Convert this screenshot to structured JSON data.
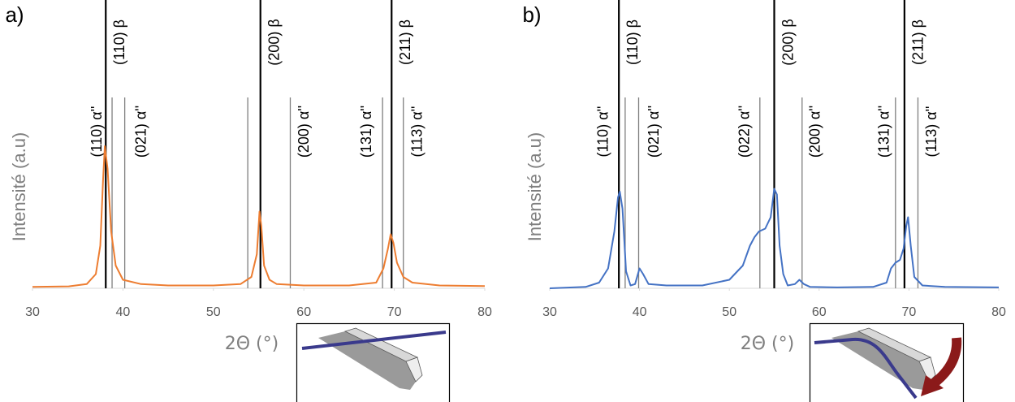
{
  "chart_data": [
    {
      "type": "line",
      "panel_label": "a)",
      "y_label": "Intensité (a.u)",
      "x_label": "2Θ (°)",
      "xlim": [
        30,
        80
      ],
      "xticks": [
        30,
        40,
        50,
        60,
        70,
        80
      ],
      "ylim": [
        0,
        100
      ],
      "x": [
        30,
        34,
        36,
        37,
        37.5,
        37.8,
        38.0,
        38.3,
        38.7,
        39.2,
        40,
        42,
        45,
        50,
        53,
        54.2,
        54.8,
        55.1,
        55.3,
        55.6,
        56.2,
        57,
        60,
        65,
        68,
        68.8,
        69.3,
        69.6,
        69.9,
        70.3,
        71,
        72,
        75,
        80
      ],
      "series": [
        {
          "color": "#ED7D31",
          "values": [
            0.5,
            0.7,
            1.5,
            5,
            15,
            38,
            50,
            42,
            20,
            8,
            3,
            1.5,
            1,
            1,
            1.5,
            4,
            12,
            27,
            22,
            8,
            3,
            1.5,
            1,
            1,
            2,
            7,
            14,
            19,
            16,
            9,
            4,
            2,
            1,
            0.8
          ]
        }
      ],
      "markers": [
        {
          "x": 38.1,
          "label": "(110) β",
          "style": "thick"
        },
        {
          "x": 38.8,
          "label": "(110) α''",
          "style": "thin"
        },
        {
          "x": 40.2,
          "label": "(021) α''",
          "style": "thin"
        },
        {
          "x": 53.8,
          "label": null,
          "style": "thin"
        },
        {
          "x": 55.2,
          "label": "(200) β",
          "style": "thick"
        },
        {
          "x": 58.5,
          "label": "(200) α''",
          "style": "thin"
        },
        {
          "x": 68.7,
          "label": "(131) α''",
          "style": "thin"
        },
        {
          "x": 69.7,
          "label": "(211) β",
          "style": "thick"
        },
        {
          "x": 71.0,
          "label": "(113) α''",
          "style": "thin"
        }
      ]
    },
    {
      "type": "line",
      "panel_label": "b)",
      "y_label": "Intensité (a.u)",
      "x_label": "2Θ (°)",
      "xlim": [
        30,
        80
      ],
      "xticks": [
        30,
        40,
        50,
        60,
        70,
        80
      ],
      "ylim": [
        0,
        100
      ],
      "x": [
        30,
        34,
        35.5,
        36.5,
        37.2,
        37.6,
        37.8,
        38.1,
        38.5,
        39,
        39.5,
        40,
        40.4,
        41,
        43,
        47,
        50,
        51.5,
        52.3,
        52.8,
        53.3,
        54,
        54.6,
        55.0,
        55.3,
        55.6,
        56,
        56.5,
        57.3,
        57.8,
        58.3,
        59,
        62,
        66,
        67.5,
        68,
        68.5,
        69,
        69.4,
        69.7,
        69.9,
        70.2,
        70.6,
        71.5,
        74,
        80
      ],
      "series": [
        {
          "color": "#4472C4",
          "values": [
            0,
            0.5,
            2,
            7,
            20,
            32,
            34,
            28,
            6,
            1,
            1.5,
            7,
            5,
            1.5,
            1,
            1,
            3,
            8,
            15,
            18,
            20,
            21,
            25,
            35,
            33,
            15,
            5,
            1,
            1.5,
            3,
            1.5,
            0.5,
            0.3,
            0.5,
            2,
            7,
            9,
            10,
            14,
            22,
            25,
            15,
            4,
            1,
            0.5,
            0.3
          ]
        }
      ],
      "markers": [
        {
          "x": 37.7,
          "label": "(110) β",
          "style": "thick"
        },
        {
          "x": 38.4,
          "label": "(110) α''",
          "style": "thin"
        },
        {
          "x": 39.9,
          "label": "(021) α''",
          "style": "thin"
        },
        {
          "x": 53.4,
          "label": "(022) α''",
          "style": "thin"
        },
        {
          "x": 55.0,
          "label": "(200) β",
          "style": "thick"
        },
        {
          "x": 58.1,
          "label": "(200) α''",
          "style": "thin"
        },
        {
          "x": 68.5,
          "label": "(131) α''",
          "style": "thin"
        },
        {
          "x": 69.5,
          "label": "(211) β",
          "style": "thick"
        },
        {
          "x": 71.0,
          "label": "(113) α''",
          "style": "thin"
        }
      ]
    }
  ]
}
